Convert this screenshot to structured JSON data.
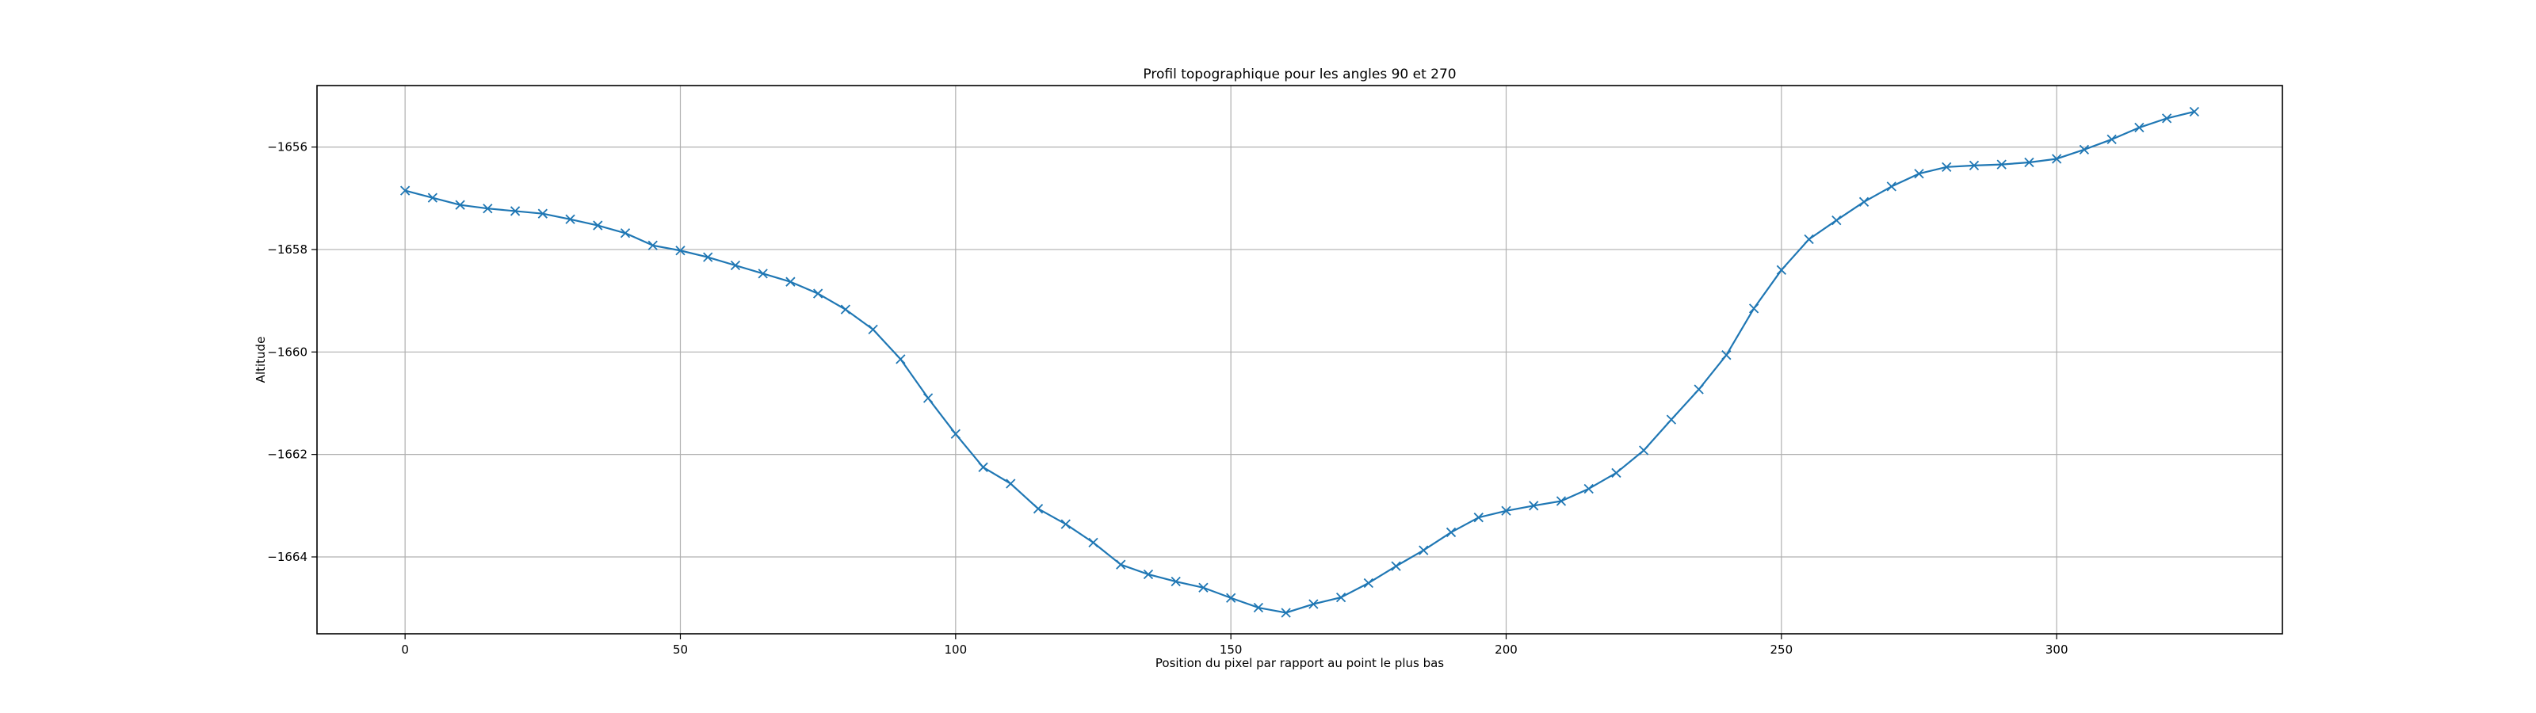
{
  "chart_data": {
    "type": "line",
    "title": "Profil topographique pour les angles 90 et 270",
    "xlabel": "Position du pixel par rapport au point le plus bas",
    "ylabel": "Altitude",
    "xlim": [
      -16,
      341
    ],
    "ylim": [
      -1665.5,
      -1654.8
    ],
    "xticks": [
      0,
      50,
      100,
      150,
      200,
      250,
      300
    ],
    "yticks": [
      -1656,
      -1658,
      -1660,
      -1662,
      -1664
    ],
    "xtick_labels": [
      "0",
      "50",
      "100",
      "150",
      "200",
      "250",
      "300"
    ],
    "ytick_labels": [
      "−1656",
      "−1658",
      "−1660",
      "−1662",
      "−1664"
    ],
    "grid": true,
    "marker": "x",
    "series": [
      {
        "color": "#1f77b4",
        "x": [
          0,
          5,
          10,
          15,
          20,
          25,
          30,
          35,
          40,
          45,
          50,
          55,
          60,
          65,
          70,
          75,
          80,
          85,
          90,
          95,
          100,
          105,
          110,
          115,
          120,
          125,
          130,
          135,
          140,
          145,
          150,
          155,
          160,
          165,
          170,
          175,
          180,
          185,
          190,
          195,
          200,
          205,
          210,
          215,
          220,
          225,
          230,
          235,
          240,
          245,
          250,
          255,
          260,
          265,
          270,
          275,
          280,
          285,
          290,
          295,
          300,
          305,
          310,
          315,
          320,
          325
        ],
        "y": [
          -1656.85,
          -1656.99,
          -1657.13,
          -1657.2,
          -1657.25,
          -1657.3,
          -1657.41,
          -1657.53,
          -1657.68,
          -1657.92,
          -1658.02,
          -1658.15,
          -1658.31,
          -1658.47,
          -1658.63,
          -1658.86,
          -1659.17,
          -1659.56,
          -1660.14,
          -1660.9,
          -1661.6,
          -1662.25,
          -1662.57,
          -1663.06,
          -1663.36,
          -1663.72,
          -1664.15,
          -1664.34,
          -1664.48,
          -1664.6,
          -1664.8,
          -1664.99,
          -1665.09,
          -1664.92,
          -1664.79,
          -1664.51,
          -1664.18,
          -1663.87,
          -1663.52,
          -1663.23,
          -1663.1,
          -1663.0,
          -1662.91,
          -1662.67,
          -1662.36,
          -1661.92,
          -1661.32,
          -1660.73,
          -1660.06,
          -1659.15,
          -1658.4,
          -1657.8,
          -1657.43,
          -1657.07,
          -1656.77,
          -1656.52,
          -1656.39,
          -1656.36,
          -1656.34,
          -1656.3,
          -1656.23,
          -1656.05,
          -1655.85,
          -1655.62,
          -1655.44,
          -1655.31
        ]
      }
    ]
  }
}
